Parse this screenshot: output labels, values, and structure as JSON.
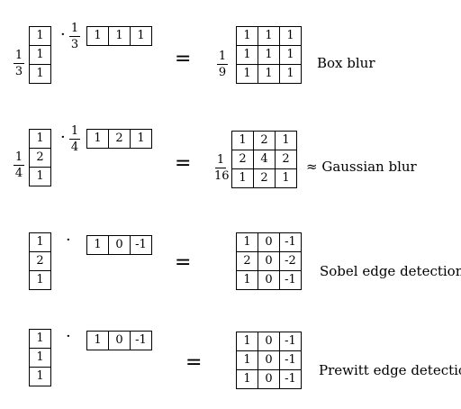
{
  "rows": [
    {
      "col_fraction": {
        "num": "1",
        "den": "3"
      },
      "col_vector": [
        "1",
        "1",
        "1"
      ],
      "dot": "·",
      "row_fraction": {
        "num": "1",
        "den": "3"
      },
      "row_vector": [
        "1",
        "1",
        "1"
      ],
      "equals": "=",
      "result_fraction": {
        "num": "1",
        "den": "9"
      },
      "result_matrix": [
        [
          "1",
          "1",
          "1"
        ],
        [
          "1",
          "1",
          "1"
        ],
        [
          "1",
          "1",
          "1"
        ]
      ],
      "label": "Box blur"
    },
    {
      "col_fraction": {
        "num": "1",
        "den": "4"
      },
      "col_vector": [
        "1",
        "2",
        "1"
      ],
      "dot": "·",
      "row_fraction": {
        "num": "1",
        "den": "4"
      },
      "row_vector": [
        "1",
        "2",
        "1"
      ],
      "equals": "=",
      "result_fraction": {
        "num": "1",
        "den": "16"
      },
      "result_matrix": [
        [
          "1",
          "2",
          "1"
        ],
        [
          "2",
          "4",
          "2"
        ],
        [
          "1",
          "2",
          "1"
        ]
      ],
      "label": "≈ Gaussian blur"
    },
    {
      "col_vector": [
        "1",
        "2",
        "1"
      ],
      "dot": "·",
      "row_vector": [
        "1",
        "0",
        "-1"
      ],
      "equals": "=",
      "result_matrix": [
        [
          "1",
          "0",
          "-1"
        ],
        [
          "2",
          "0",
          "-2"
        ],
        [
          "1",
          "0",
          "-1"
        ]
      ],
      "label": "Sobel edge detection"
    },
    {
      "col_vector": [
        "1",
        "1",
        "1"
      ],
      "dot": "·",
      "row_vector": [
        "1",
        "0",
        "-1"
      ],
      "equals": "=",
      "result_matrix": [
        [
          "1",
          "0",
          "-1"
        ],
        [
          "1",
          "0",
          "-1"
        ],
        [
          "1",
          "0",
          "-1"
        ]
      ],
      "label": "Prewitt edge detection"
    }
  ]
}
